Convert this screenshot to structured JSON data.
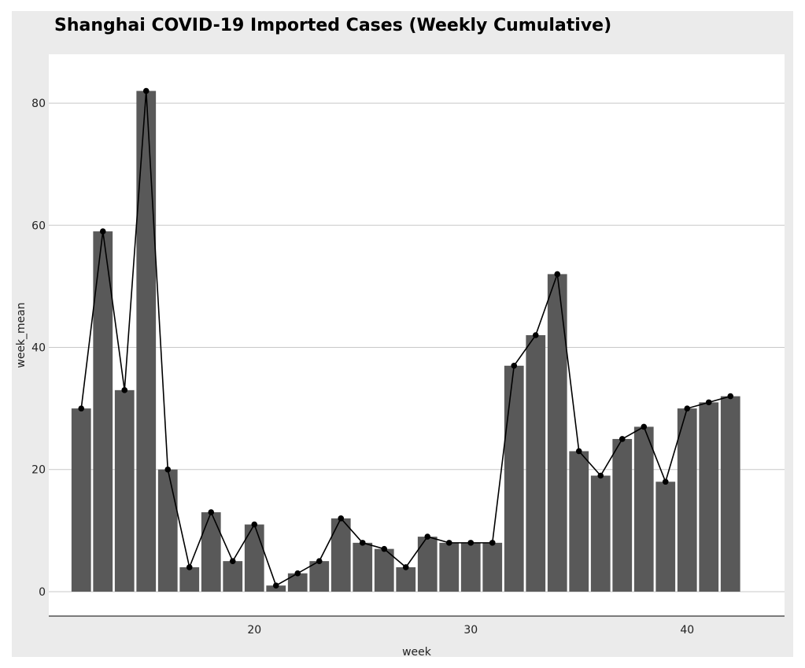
{
  "chart_data": {
    "type": "bar",
    "title": "Shanghai COVID-19 Imported Cases (Weekly Cumulative)",
    "xlabel": "week",
    "ylabel": "week_mean",
    "x": [
      12,
      13,
      14,
      15,
      16,
      17,
      18,
      19,
      20,
      21,
      22,
      23,
      24,
      25,
      26,
      27,
      28,
      29,
      30,
      31,
      32,
      33,
      34,
      35,
      36,
      37,
      38,
      39,
      40,
      41,
      42
    ],
    "values": [
      30,
      59,
      33,
      82,
      20,
      4,
      13,
      5,
      11,
      1,
      3,
      5,
      12,
      8,
      7,
      4,
      9,
      8,
      8,
      8,
      37,
      42,
      52,
      23,
      19,
      25,
      27,
      18,
      30,
      31,
      32
    ],
    "overlay": "line-with-points",
    "xlim": [
      10.5,
      44.5
    ],
    "ylim": [
      -4,
      88
    ],
    "xticks": [
      20,
      30,
      40
    ],
    "yticks": [
      0,
      20,
      40,
      60,
      80
    ],
    "grid": "horizontal",
    "colors": {
      "bar": "#595959",
      "line": "#000000",
      "point": "#000000",
      "panel_background": "#ffffff",
      "outer_background": "#ebebeb",
      "gridline": "#c8c8c8"
    }
  }
}
